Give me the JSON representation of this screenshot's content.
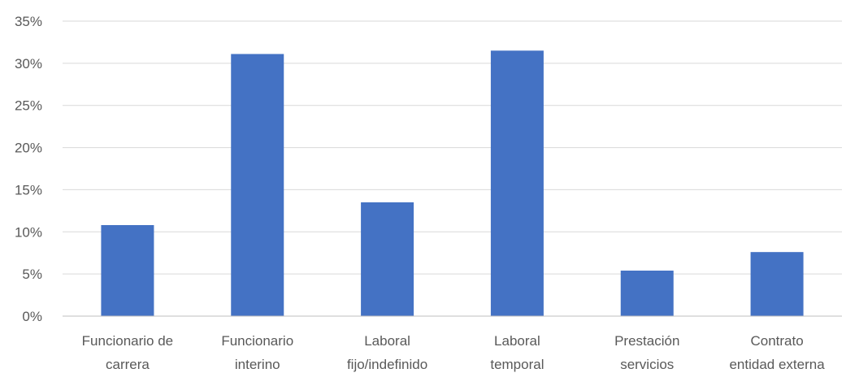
{
  "chart_data": {
    "type": "bar",
    "categories": [
      [
        "Funcionario de",
        "carrera"
      ],
      [
        "Funcionario",
        "interino"
      ],
      [
        "Laboral",
        "fijo/indefinido"
      ],
      [
        "Laboral",
        "temporal"
      ],
      [
        "Prestación",
        "servicios"
      ],
      [
        "Contrato",
        "entidad externa"
      ]
    ],
    "values": [
      10.8,
      31.1,
      13.5,
      31.5,
      5.4,
      7.6
    ],
    "yticks": [
      "0%",
      "5%",
      "10%",
      "15%",
      "20%",
      "25%",
      "30%",
      "35%"
    ],
    "ylim": [
      0,
      35
    ],
    "grid": true,
    "bar_color": "#4472c4",
    "title": "",
    "xlabel": "",
    "ylabel": ""
  }
}
